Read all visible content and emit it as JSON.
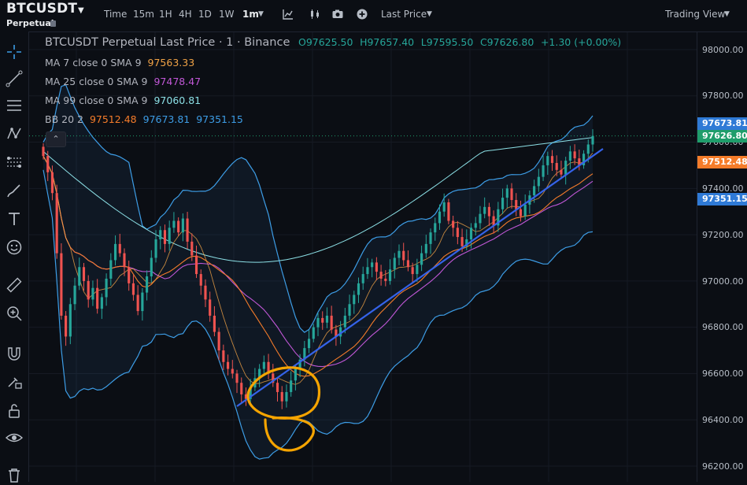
{
  "header": {
    "symbol": "BTCUSDT",
    "contract": "Perpetual",
    "intervals": [
      "Time",
      "15m",
      "1H",
      "4H",
      "1D",
      "1W",
      "1m"
    ],
    "active_interval": "1m",
    "price_type": "Last Price",
    "view_mode": "Trading View"
  },
  "title": {
    "text": "BTCUSDT Perpetual Last Price · 1 · Binance",
    "open": "O97625.50",
    "high": "H97657.40",
    "low": "L97595.50",
    "close": "C97626.80",
    "change": "+1.30 (+0.00%)"
  },
  "indicators": [
    {
      "label": "MA 7 close 0 SMA 9",
      "value": "97563.33",
      "color": "#f0a246"
    },
    {
      "label": "MA 25 close 0 SMA 9",
      "value": "97478.47",
      "color": "#c057d6"
    },
    {
      "label": "MA 99 close 0 SMA 9",
      "value": "97060.81",
      "color": "#8ce0e6"
    }
  ],
  "bollinger": {
    "label": "BB 20 2",
    "basis": "97512.48",
    "upper": "97673.81",
    "lower": "97351.15",
    "basis_color": "#f57c2a",
    "band_color": "#3d9de6"
  },
  "price_axis": {
    "ticks": [
      "98000.00",
      "97800.00",
      "97600.00",
      "97400.00",
      "97200.00",
      "97000.00",
      "96800.00",
      "96600.00",
      "96400.00",
      "96200.00"
    ],
    "tags": [
      {
        "value": "97673.81",
        "color": "#2f7ad6"
      },
      {
        "value": "97626.80",
        "color": "#1f9d6b"
      },
      {
        "value": "97512.48",
        "color": "#f57c2a"
      },
      {
        "value": "97351.15",
        "color": "#2f7ad6"
      }
    ]
  },
  "colors": {
    "up": "#26a69a",
    "down": "#ef5350",
    "trendline": "#3563e9",
    "annotation": "#f5a400"
  },
  "chart_data": {
    "type": "candlestick",
    "ylim": [
      96180,
      98060
    ],
    "close_series": [
      97540,
      97470,
      97380,
      97120,
      96850,
      96760,
      96900,
      96980,
      97060,
      97000,
      96920,
      96970,
      96880,
      96930,
      97010,
      97090,
      97160,
      97120,
      97060,
      96990,
      96940,
      96870,
      96950,
      97020,
      97100,
      97180,
      97220,
      97160,
      97230,
      97260,
      97210,
      97270,
      97170,
      97110,
      97030,
      96980,
      96920,
      96850,
      96780,
      96700,
      96650,
      96620,
      96600,
      96560,
      96510,
      96490,
      96540,
      96580,
      96620,
      96650,
      96600,
      96560,
      96520,
      96480,
      96520,
      96570,
      96620,
      96660,
      96710,
      96750,
      96800,
      96840,
      96820,
      96850,
      96790,
      96760,
      96800,
      96850,
      96900,
      96940,
      96990,
      97030,
      97060,
      97080,
      97040,
      97010,
      97000,
      97050,
      97100,
      97130,
      97090,
      97060,
      97030,
      97070,
      97120,
      97160,
      97210,
      97250,
      97300,
      97340,
      97260,
      97230,
      97190,
      97150,
      97180,
      97230,
      97250,
      97290,
      97320,
      97280,
      97240,
      97310,
      97360,
      97400,
      97350,
      97310,
      97280,
      97330,
      97370,
      97410,
      97450,
      97500,
      97540,
      97510,
      97480,
      97460,
      97520,
      97560,
      97530,
      97500,
      97550,
      97590,
      97627
    ],
    "ma7_last": 97563.33,
    "ma25_last": 97478.47,
    "ma99_last": 97060.81,
    "bb_upper_last": 97673.81,
    "bb_basis_last": 97512.48,
    "bb_lower_last": 97351.15
  }
}
